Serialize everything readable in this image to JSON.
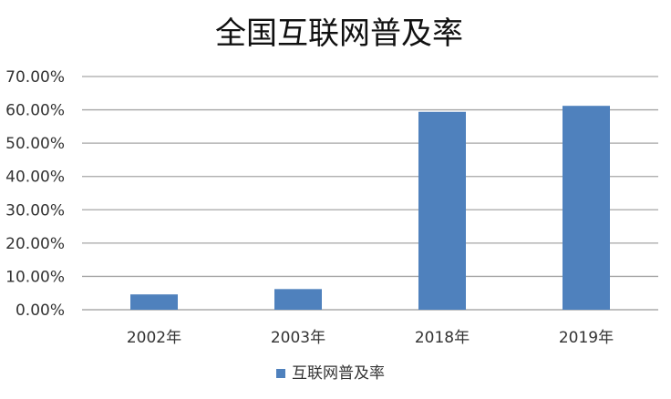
{
  "chart_data": {
    "type": "bar",
    "title": "全国互联网普及率",
    "categories": [
      "2002年",
      "2003年",
      "2018年",
      "2019年"
    ],
    "series": [
      {
        "name": "互联网普及率",
        "values": [
          0.046,
          0.062,
          0.594,
          0.612
        ],
        "color": "#4f81bd"
      }
    ],
    "ylim": [
      0,
      0.7
    ],
    "yticks": [
      0,
      0.1,
      0.2,
      0.3,
      0.4,
      0.5,
      0.6,
      0.7
    ],
    "ytick_labels": [
      "0.00%",
      "10.00%",
      "20.00%",
      "30.00%",
      "40.00%",
      "50.00%",
      "60.00%",
      "70.00%"
    ],
    "grid": true,
    "legend_position": "bottom-center",
    "xlabel": "",
    "ylabel": ""
  }
}
